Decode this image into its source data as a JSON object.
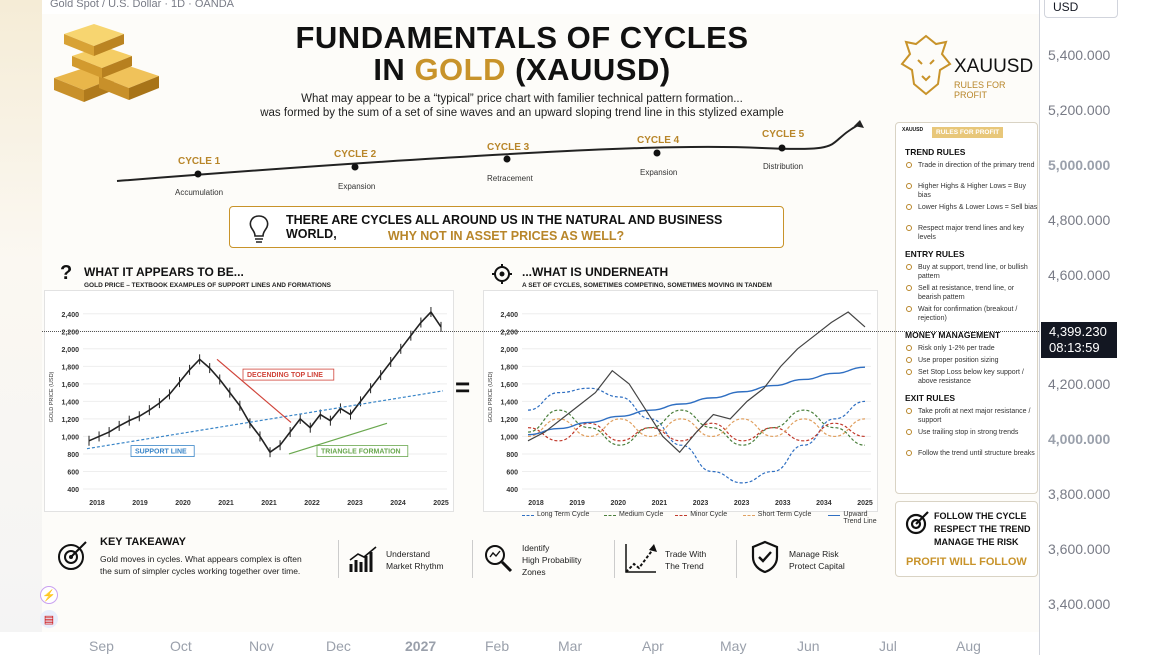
{
  "symbol": "Gold Spot / U.S. Dollar · 1D · OANDA",
  "currency": "USD",
  "price_axis": {
    "ticks": [
      "5,400.000",
      "5,200.000",
      "5,000.000",
      "4,800.000",
      "4,600.000",
      "4,200.000",
      "4,000.000",
      "3,800.000",
      "3,600.000",
      "3,400.000"
    ],
    "major": [
      "5,000.000",
      "4,000.000"
    ],
    "current_price": "4,399.230",
    "countdown": "08:13:59"
  },
  "time_axis": [
    "Sep",
    "Oct",
    "Nov",
    "Dec",
    "2027",
    "Feb",
    "Mar",
    "Apr",
    "May",
    "Jun",
    "Jul",
    "Aug"
  ],
  "infographic": {
    "title_line1": "FUNDAMENTALS OF CYCLES",
    "title_in": "IN",
    "title_gold": "GOLD",
    "title_ticker": "(XAUUSD)",
    "subtitle_line1": "What may appear to be a “typical” price chart with familier technical pattern formation...",
    "subtitle_line2": "was formed by the sum of a set of sine waves and an upward sloping trend line in this stylized example",
    "brand": "XAUUSD",
    "brand_tag": "RULES FOR PROFIT",
    "cycles": [
      {
        "label": "CYCLE 1",
        "phase": "Accumulation"
      },
      {
        "label": "CYCLE 2",
        "phase": "Expansion"
      },
      {
        "label": "CYCLE 3",
        "phase": "Retracement"
      },
      {
        "label": "CYCLE 4",
        "phase": "Expansion"
      },
      {
        "label": "CYCLE 5",
        "phase": "Distribution"
      }
    ],
    "callout_line1": "THERE ARE CYCLES ALL AROUND US IN THE NATURAL AND BUSINESS WORLD,",
    "callout_line2": "WHY NOT IN ASSET PRICES AS WELL?",
    "left_panel": {
      "title": "WHAT IT APPEARS TO BE...",
      "subtitle": "GOLD PRICE – TEXTBOOK EXAMPLES OF SUPPORT LINES AND FORMATIONS",
      "annotations": [
        "DECENDING TOP LINE",
        "SUPPORT LINE",
        "TRIANGLE FORMATION"
      ]
    },
    "equals": "=",
    "right_panel": {
      "title": "...WHAT IS UNDERNEATH",
      "subtitle": "A SET OF CYCLES, SOMETIMES COMPETING, SOMETIMES MOVING IN TANDEM",
      "legend": [
        "Long Term Cycle",
        "Medium Cycle",
        "Minor Cycle",
        "Short Term Cycle",
        "Upward Trend Line"
      ]
    },
    "rules": {
      "brand_small": "XAUUSD",
      "badge": "RULES FOR PROFIT",
      "sections": [
        {
          "head": "TREND RULES",
          "items": [
            "Trade in direction of the primary trend",
            "Higher Highs & Higher Lows = Buy bias",
            "Lower Highs & Lower Lows = Sell bias",
            "Respect major trend lines and key levels"
          ]
        },
        {
          "head": "ENTRY RULES",
          "items": [
            "Buy at support, trend line, or bullish pattern",
            "Sell at resistance, trend line, or bearish pattern",
            "Wait for confirmation (breakout / rejection)"
          ]
        },
        {
          "head": "MONEY MANAGEMENT",
          "items": [
            "Risk only 1-2% per trade",
            "Use proper position sizing",
            "Set Stop Loss below key support / above resistance"
          ]
        },
        {
          "head": "EXIT RULES",
          "items": [
            "Take profit at next major resistance / support",
            "Use trailing stop in strong trends",
            "Follow the trend until structure breaks"
          ]
        }
      ]
    },
    "follow": {
      "line1": "FOLLOW THE CYCLE",
      "line2": "RESPECT THE TREND",
      "line3": "MANAGE THE RISK",
      "cta": "PROFIT WILL FOLLOW"
    },
    "takeaway": {
      "title": "KEY TAKEAWAY",
      "text": "Gold moves in cycles. What appears complex is often the sum of simpler cycles working together over time.",
      "items": [
        {
          "l1": "Understand",
          "l2": "Market Rhythm",
          "l3": ""
        },
        {
          "l1": "Identify",
          "l2": "High Probability",
          "l3": "Zones"
        },
        {
          "l1": "Trade With",
          "l2": "The Trend",
          "l3": ""
        },
        {
          "l1": "Manage Risk",
          "l2": "Protect Capital",
          "l3": ""
        }
      ]
    }
  },
  "chart_data": [
    {
      "type": "line",
      "title": "WHAT IT APPEARS TO BE...",
      "x_ticks": [
        "2018",
        "2019",
        "2020",
        "2021",
        "2021",
        "2022",
        "2023",
        "2024",
        "2025"
      ],
      "y_ticks": [
        400,
        600,
        800,
        1000,
        1200,
        1400,
        1600,
        1800,
        2000,
        2200,
        2400
      ],
      "ylabel": "GOLD PRICE (USD)",
      "ylim": [
        400,
        2500
      ],
      "series": [
        {
          "values": [
            950,
            1000,
            1050,
            1120,
            1180,
            1230,
            1300,
            1380,
            1480,
            1620,
            1760,
            1880,
            1780,
            1650,
            1500,
            1350,
            1150,
            1000,
            820,
            900,
            1050,
            1200,
            1100,
            1250,
            1180,
            1320,
            1250,
            1400,
            1550,
            1700,
            1850,
            2000,
            2150,
            2300,
            2420,
            2250
          ]
        }
      ]
    },
    {
      "type": "line",
      "title": "...WHAT IS UNDERNEATH",
      "x_ticks": [
        "2018",
        "2019",
        "2020",
        "2021",
        "2023",
        "2023",
        "2033",
        "2034",
        "2025"
      ],
      "y_ticks": [
        400,
        600,
        800,
        1000,
        1200,
        1400,
        1600,
        1800,
        2000,
        2200,
        2400
      ],
      "ylabel": "GOLD PRICE (USD)",
      "ylim": [
        400,
        2500
      ],
      "series": [
        {
          "name": "Long Term Cycle",
          "values": [
            1300,
            1500,
            1550,
            1450,
            1200,
            900,
            600,
            470,
            600,
            900,
            1200,
            1400
          ]
        },
        {
          "name": "Medium Cycle",
          "values": [
            1050,
            1300,
            1100,
            900,
            1100,
            1300,
            1100,
            900,
            1100,
            1300,
            1100,
            900
          ]
        },
        {
          "name": "Minor Cycle",
          "values": [
            1100,
            950,
            1150,
            950,
            1100,
            950,
            1150,
            950,
            1100,
            950,
            1150,
            1000
          ]
        },
        {
          "name": "Short Term Cycle",
          "values": [
            1000,
            1200,
            1000,
            1200,
            1000,
            1200,
            1000,
            1200,
            1000,
            1200,
            1000,
            1200
          ]
        },
        {
          "name": "Upward Trend Line",
          "values": [
            1020,
            1090,
            1160,
            1230,
            1300,
            1370,
            1440,
            1510,
            1580,
            1650,
            1720,
            1790
          ]
        }
      ]
    }
  ]
}
